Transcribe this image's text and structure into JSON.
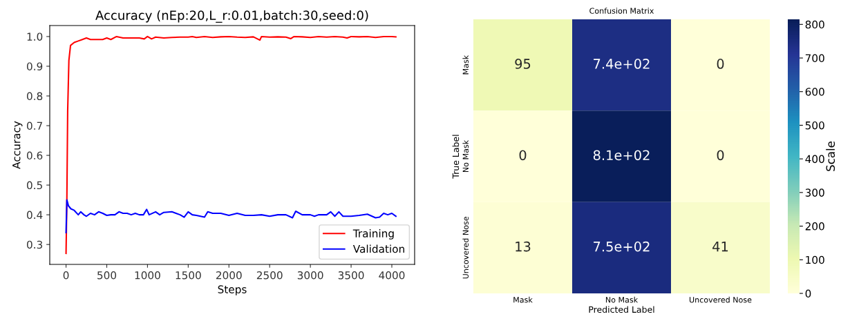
{
  "chart_data": [
    {
      "type": "line",
      "title": "Accuracy (nEp:20,L_r:0.01,batch:30,seed:0)",
      "xlabel": "Steps",
      "ylabel": "Accuracy",
      "xlim": [
        -200,
        4280
      ],
      "ylim": [
        0.233,
        1.037
      ],
      "xticks": [
        0,
        500,
        1000,
        1500,
        2000,
        2500,
        3000,
        3500,
        4000
      ],
      "yticks": [
        0.3,
        0.4,
        0.5,
        0.6,
        0.7,
        0.8,
        0.9,
        {
          "value": 1,
          "label": "1.0"
        }
      ],
      "grid": false,
      "legend": "bottom right",
      "series": [
        {
          "name": "Training",
          "color": "#ff0000",
          "x": [
            0,
            10,
            20,
            35,
            55,
            100,
            150,
            200,
            250,
            300,
            400,
            450,
            500,
            550,
            620,
            700,
            800,
            900,
            960,
            1000,
            1050,
            1100,
            1200,
            1300,
            1400,
            1500,
            1550,
            1600,
            1700,
            1800,
            1900,
            2000,
            2100,
            2200,
            2300,
            2380,
            2400,
            2500,
            2600,
            2700,
            2760,
            2800,
            2900,
            3000,
            3100,
            3200,
            3300,
            3400,
            3450,
            3500,
            3600,
            3700,
            3800,
            3900,
            4000,
            4050
          ],
          "values": [
            0.27,
            0.45,
            0.75,
            0.92,
            0.97,
            0.98,
            0.985,
            0.99,
            0.995,
            0.99,
            0.99,
            0.99,
            0.995,
            0.99,
            1.0,
            0.995,
            0.995,
            0.995,
            0.992,
            1.0,
            0.992,
            0.998,
            0.995,
            0.997,
            0.998,
            0.998,
            1.0,
            0.997,
            1.0,
            0.997,
            0.999,
            1.0,
            0.998,
            0.997,
            0.999,
            0.988,
            1.0,
            0.998,
            0.999,
            0.998,
            0.993,
            1.0,
            0.999,
            0.997,
            1.0,
            0.998,
            1.0,
            0.998,
            0.995,
            1.0,
            0.999,
            1.0,
            0.997,
            1.0,
            1.0,
            0.999
          ]
        },
        {
          "name": "Validation",
          "color": "#0000ff",
          "x": [
            0,
            10,
            30,
            60,
            100,
            150,
            180,
            220,
            250,
            300,
            350,
            400,
            450,
            500,
            550,
            600,
            650,
            700,
            750,
            800,
            850,
            900,
            950,
            990,
            1020,
            1100,
            1150,
            1200,
            1300,
            1350,
            1400,
            1450,
            1500,
            1550,
            1600,
            1700,
            1740,
            1800,
            1900,
            2000,
            2100,
            2200,
            2300,
            2400,
            2500,
            2600,
            2700,
            2780,
            2820,
            2900,
            3000,
            3050,
            3100,
            3200,
            3250,
            3300,
            3350,
            3400,
            3500,
            3600,
            3700,
            3800,
            3850,
            3900,
            3950,
            4000,
            4050
          ],
          "values": [
            0.34,
            0.45,
            0.43,
            0.42,
            0.415,
            0.4,
            0.41,
            0.4,
            0.395,
            0.405,
            0.4,
            0.41,
            0.405,
            0.398,
            0.4,
            0.4,
            0.41,
            0.405,
            0.405,
            0.4,
            0.405,
            0.4,
            0.4,
            0.418,
            0.4,
            0.41,
            0.4,
            0.408,
            0.41,
            0.405,
            0.4,
            0.392,
            0.41,
            0.4,
            0.398,
            0.392,
            0.41,
            0.405,
            0.405,
            0.398,
            0.405,
            0.398,
            0.398,
            0.4,
            0.395,
            0.4,
            0.4,
            0.39,
            0.412,
            0.4,
            0.4,
            0.395,
            0.4,
            0.4,
            0.41,
            0.395,
            0.41,
            0.395,
            0.395,
            0.398,
            0.402,
            0.39,
            0.392,
            0.405,
            0.4,
            0.405,
            0.395
          ]
        }
      ]
    },
    {
      "type": "heatmap",
      "title": "Confusion Matrix",
      "xlabel": "Predicted Label",
      "ylabel": "True Label",
      "clabel": "Scale",
      "categories": [
        "Mask",
        "No Mask",
        "Uncovered Nose"
      ],
      "y_categories": [
        "Mask",
        "No Mask",
        "Uncovered Nose"
      ],
      "cells": [
        [
          95,
          740,
          0
        ],
        [
          0,
          810,
          0
        ],
        [
          13,
          750,
          41
        ]
      ],
      "cell_labels": [
        [
          "95",
          "7.4e+02",
          "0"
        ],
        [
          "0",
          "8.1e+02",
          "0"
        ],
        [
          "13",
          "7.5e+02",
          "41"
        ]
      ],
      "clim": [
        0,
        815
      ],
      "cticks": [
        0,
        100,
        200,
        300,
        400,
        500,
        600,
        700,
        800
      ]
    }
  ]
}
